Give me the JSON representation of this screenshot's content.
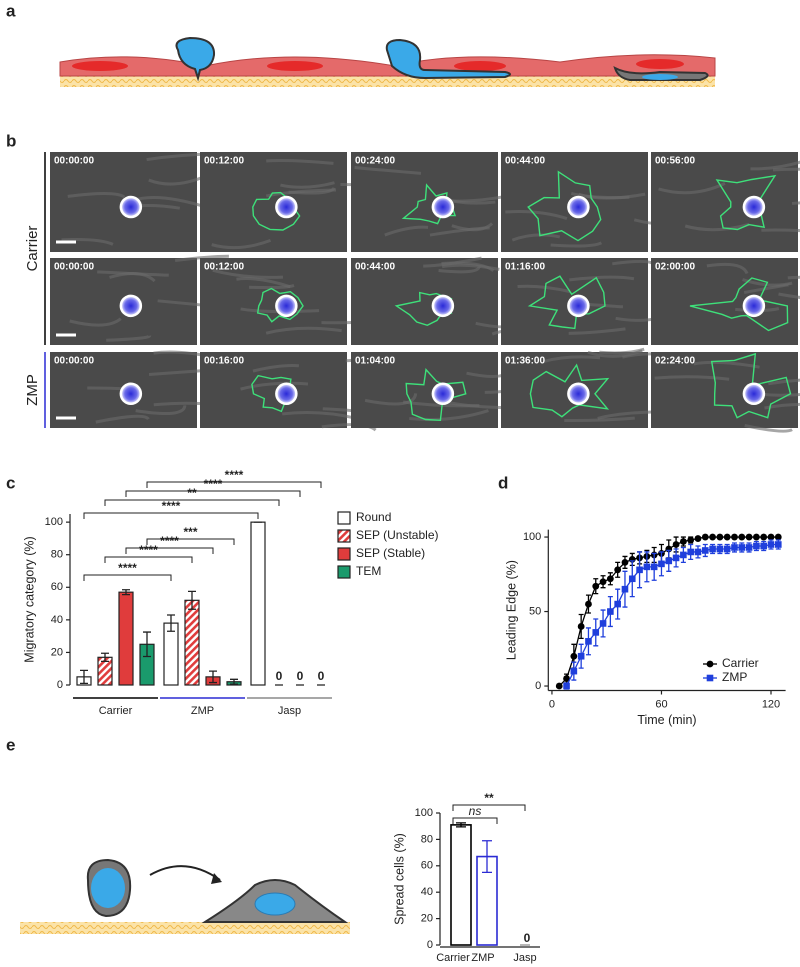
{
  "panel_labels": [
    "a",
    "b",
    "c",
    "d",
    "e"
  ],
  "microscopy": {
    "groups": [
      {
        "label": "Carrier",
        "color": "#000000",
        "rows": [
          [
            "00:00:00",
            "00:12:00",
            "00:24:00",
            "00:44:00",
            "00:56:00"
          ],
          [
            "00:00:00",
            "00:12:00",
            "00:44:00",
            "01:16:00",
            "02:00:00"
          ]
        ]
      },
      {
        "label": "ZMP",
        "color": "#2b2bd4",
        "rows": [
          [
            "00:00:00",
            "00:16:00",
            "01:04:00",
            "01:36:00",
            "02:24:00"
          ]
        ]
      }
    ]
  },
  "chart_data": [
    {
      "type": "bar",
      "y_label": "Migratory category (%)",
      "categories": [
        "Carrier",
        "ZMP",
        "Jasp"
      ],
      "category_colors": [
        "#000000",
        "#2b2bd4",
        "#8a8a8a"
      ],
      "ylim": [
        0,
        105
      ],
      "yticks": [
        0,
        20,
        40,
        60,
        80,
        100
      ],
      "series": [
        {
          "name": "Round",
          "color": "#ffffff",
          "values": [
            5,
            38,
            100
          ],
          "errors": [
            4,
            5,
            0
          ]
        },
        {
          "name": "SEP (Unstable)",
          "color": "#e03c3c",
          "hatch": true,
          "values": [
            17,
            52,
            0
          ],
          "errors": [
            2.5,
            5.5,
            0
          ]
        },
        {
          "name": "SEP (Stable)",
          "color": "#e03c3c",
          "values": [
            57,
            5,
            0
          ],
          "errors": [
            1.5,
            3.5,
            0
          ]
        },
        {
          "name": "TEM",
          "color": "#1a9a6c",
          "values": [
            25,
            2,
            0
          ],
          "errors": [
            7.5,
            1.5,
            0
          ]
        }
      ],
      "annotations": [
        "****",
        "****",
        "****",
        "***",
        "****",
        "**",
        "****",
        "****"
      ]
    },
    {
      "type": "line",
      "x_label": "Time (min)",
      "y_label": "Leading Edge (%)",
      "xlim": [
        -2,
        128
      ],
      "xticks": [
        0,
        60,
        120
      ],
      "ylim": [
        -3,
        105
      ],
      "yticks": [
        0,
        50,
        100
      ],
      "x": [
        4,
        8,
        12,
        16,
        20,
        24,
        28,
        32,
        36,
        40,
        44,
        48,
        52,
        56,
        60,
        64,
        68,
        72,
        76,
        80,
        84,
        88,
        92,
        96,
        100,
        104,
        108,
        112,
        116,
        120,
        124
      ],
      "series": [
        {
          "name": "Carrier",
          "color": "#000000",
          "marker": "circle",
          "values": [
            0,
            5,
            20,
            40,
            55,
            67,
            70,
            72,
            78,
            83,
            85,
            86,
            87,
            88,
            89,
            92,
            95,
            97,
            98,
            99,
            100,
            100,
            100,
            100,
            100,
            100,
            100,
            100,
            100,
            100,
            100
          ],
          "errors": [
            0,
            3,
            8,
            8,
            6,
            5,
            4,
            4,
            5,
            4,
            4,
            4,
            4,
            5,
            6,
            6,
            5,
            3,
            2,
            1,
            0,
            0,
            0,
            0,
            0,
            0,
            0,
            0,
            0,
            0,
            0
          ]
        },
        {
          "name": "ZMP",
          "color": "#1f3fdc",
          "marker": "square",
          "values": [
            null,
            0,
            10,
            20,
            30,
            36,
            42,
            50,
            55,
            65,
            72,
            78,
            80,
            80,
            82,
            84,
            86,
            88,
            90,
            90,
            91,
            92,
            92,
            92,
            93,
            93,
            93,
            94,
            94,
            95,
            95
          ],
          "errors": [
            null,
            2,
            6,
            8,
            9,
            9,
            9,
            10,
            10,
            12,
            12,
            12,
            10,
            9,
            8,
            7,
            6,
            5,
            5,
            4,
            4,
            3,
            3,
            3,
            3,
            3,
            3,
            3,
            3,
            3,
            3
          ]
        }
      ],
      "legend": "lower right"
    },
    {
      "type": "bar",
      "y_label": "Spread cells (%)",
      "categories": [
        "Carrier",
        "ZMP",
        "Jasp"
      ],
      "colors": [
        "#000000",
        "#2b2bd4",
        "#8a8a8a"
      ],
      "values": [
        91,
        67,
        0
      ],
      "errors": [
        1.5,
        12,
        0
      ],
      "ylim": [
        0,
        100
      ],
      "yticks": [
        0,
        20,
        40,
        60,
        80,
        100
      ],
      "annotations": [
        "ns",
        "**"
      ]
    }
  ]
}
